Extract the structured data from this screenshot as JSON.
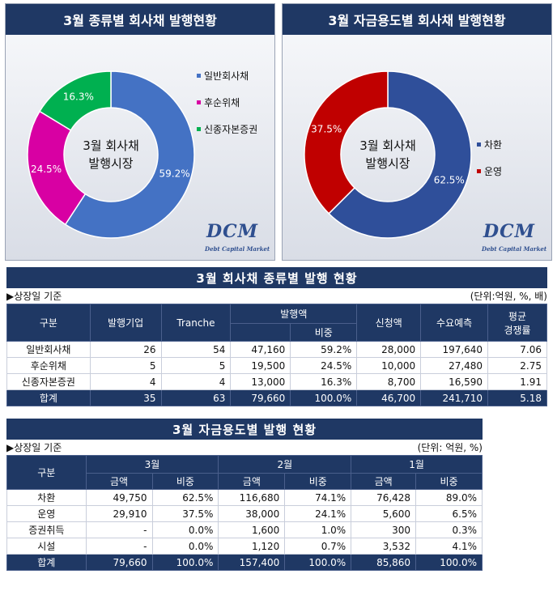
{
  "chart_data": [
    {
      "type": "pie",
      "title": "3월 종류별 회사채 발행현황",
      "center_label": [
        "3월 회사채",
        "발행시장"
      ],
      "categories": [
        "일반회사채",
        "후순위채",
        "신종자본증권"
      ],
      "values": [
        59.2,
        24.5,
        16.3
      ],
      "value_labels": [
        "59.2%",
        "24.5%",
        "16.3%"
      ],
      "colors": [
        "#4472c4",
        "#d800a3",
        "#00b050"
      ],
      "legend": "right"
    },
    {
      "type": "pie",
      "title": "3월 자금용도별 회사채 발행현황",
      "center_label": [
        "3월 회사채",
        "발행시장"
      ],
      "categories": [
        "차환",
        "운영"
      ],
      "values": [
        62.5,
        37.5
      ],
      "value_labels": [
        "62.5%",
        "37.5%"
      ],
      "colors": [
        "#2f4f9a",
        "#c00000"
      ],
      "legend": "right"
    }
  ],
  "watermark": {
    "logo": "DCM",
    "sub": "Debt Capital Market"
  },
  "table1": {
    "title": "3월 회사채 종류별 발행 현황",
    "basis": "▶상장일 기준",
    "unit": "(단위:억원, %, 배)",
    "headers": {
      "gubun": "구분",
      "issuers": "발행기업",
      "tranche": "Tranche",
      "amount": "발행액",
      "share": "비중",
      "subscribed": "신청액",
      "demand": "수요예측",
      "rate1": "평균",
      "rate2": "경쟁률"
    },
    "rows": [
      {
        "name": "일반회사채",
        "issuers": "26",
        "tranche": "54",
        "amount": "47,160",
        "share": "59.2%",
        "subscribed": "28,000",
        "demand": "197,640",
        "rate": "7.06"
      },
      {
        "name": "후순위채",
        "issuers": "5",
        "tranche": "5",
        "amount": "19,500",
        "share": "24.5%",
        "subscribed": "10,000",
        "demand": "27,480",
        "rate": "2.75"
      },
      {
        "name": "신종자본증권",
        "issuers": "4",
        "tranche": "4",
        "amount": "13,000",
        "share": "16.3%",
        "subscribed": "8,700",
        "demand": "16,590",
        "rate": "1.91"
      }
    ],
    "total": {
      "name": "합계",
      "issuers": "35",
      "tranche": "63",
      "amount": "79,660",
      "share": "100.0%",
      "subscribed": "46,700",
      "demand": "241,710",
      "rate": "5.18"
    }
  },
  "table2": {
    "title": "3월 자금용도별 발행 현황",
    "basis": "▶상장일 기준",
    "unit": "(단위: 억원, %)",
    "headers": {
      "gubun": "구분",
      "m3": "3월",
      "m2": "2월",
      "m1": "1월",
      "amount": "금액",
      "share": "비중"
    },
    "rows": [
      {
        "name": "차환",
        "a3": "49,750",
        "s3": "62.5%",
        "a2": "116,680",
        "s2": "74.1%",
        "a1": "76,428",
        "s1": "89.0%"
      },
      {
        "name": "운영",
        "a3": "29,910",
        "s3": "37.5%",
        "a2": "38,000",
        "s2": "24.1%",
        "a1": "5,600",
        "s1": "6.5%"
      },
      {
        "name": "증권취득",
        "a3": "-",
        "s3": "0.0%",
        "a2": "1,600",
        "s2": "1.0%",
        "a1": "300",
        "s1": "0.3%"
      },
      {
        "name": "시설",
        "a3": "-",
        "s3": "0.0%",
        "a2": "1,120",
        "s2": "0.7%",
        "a1": "3,532",
        "s1": "4.1%"
      }
    ],
    "total": {
      "name": "합계",
      "a3": "79,660",
      "s3": "100.0%",
      "a2": "157,400",
      "s2": "100.0%",
      "a1": "85,860",
      "s1": "100.0%"
    }
  }
}
